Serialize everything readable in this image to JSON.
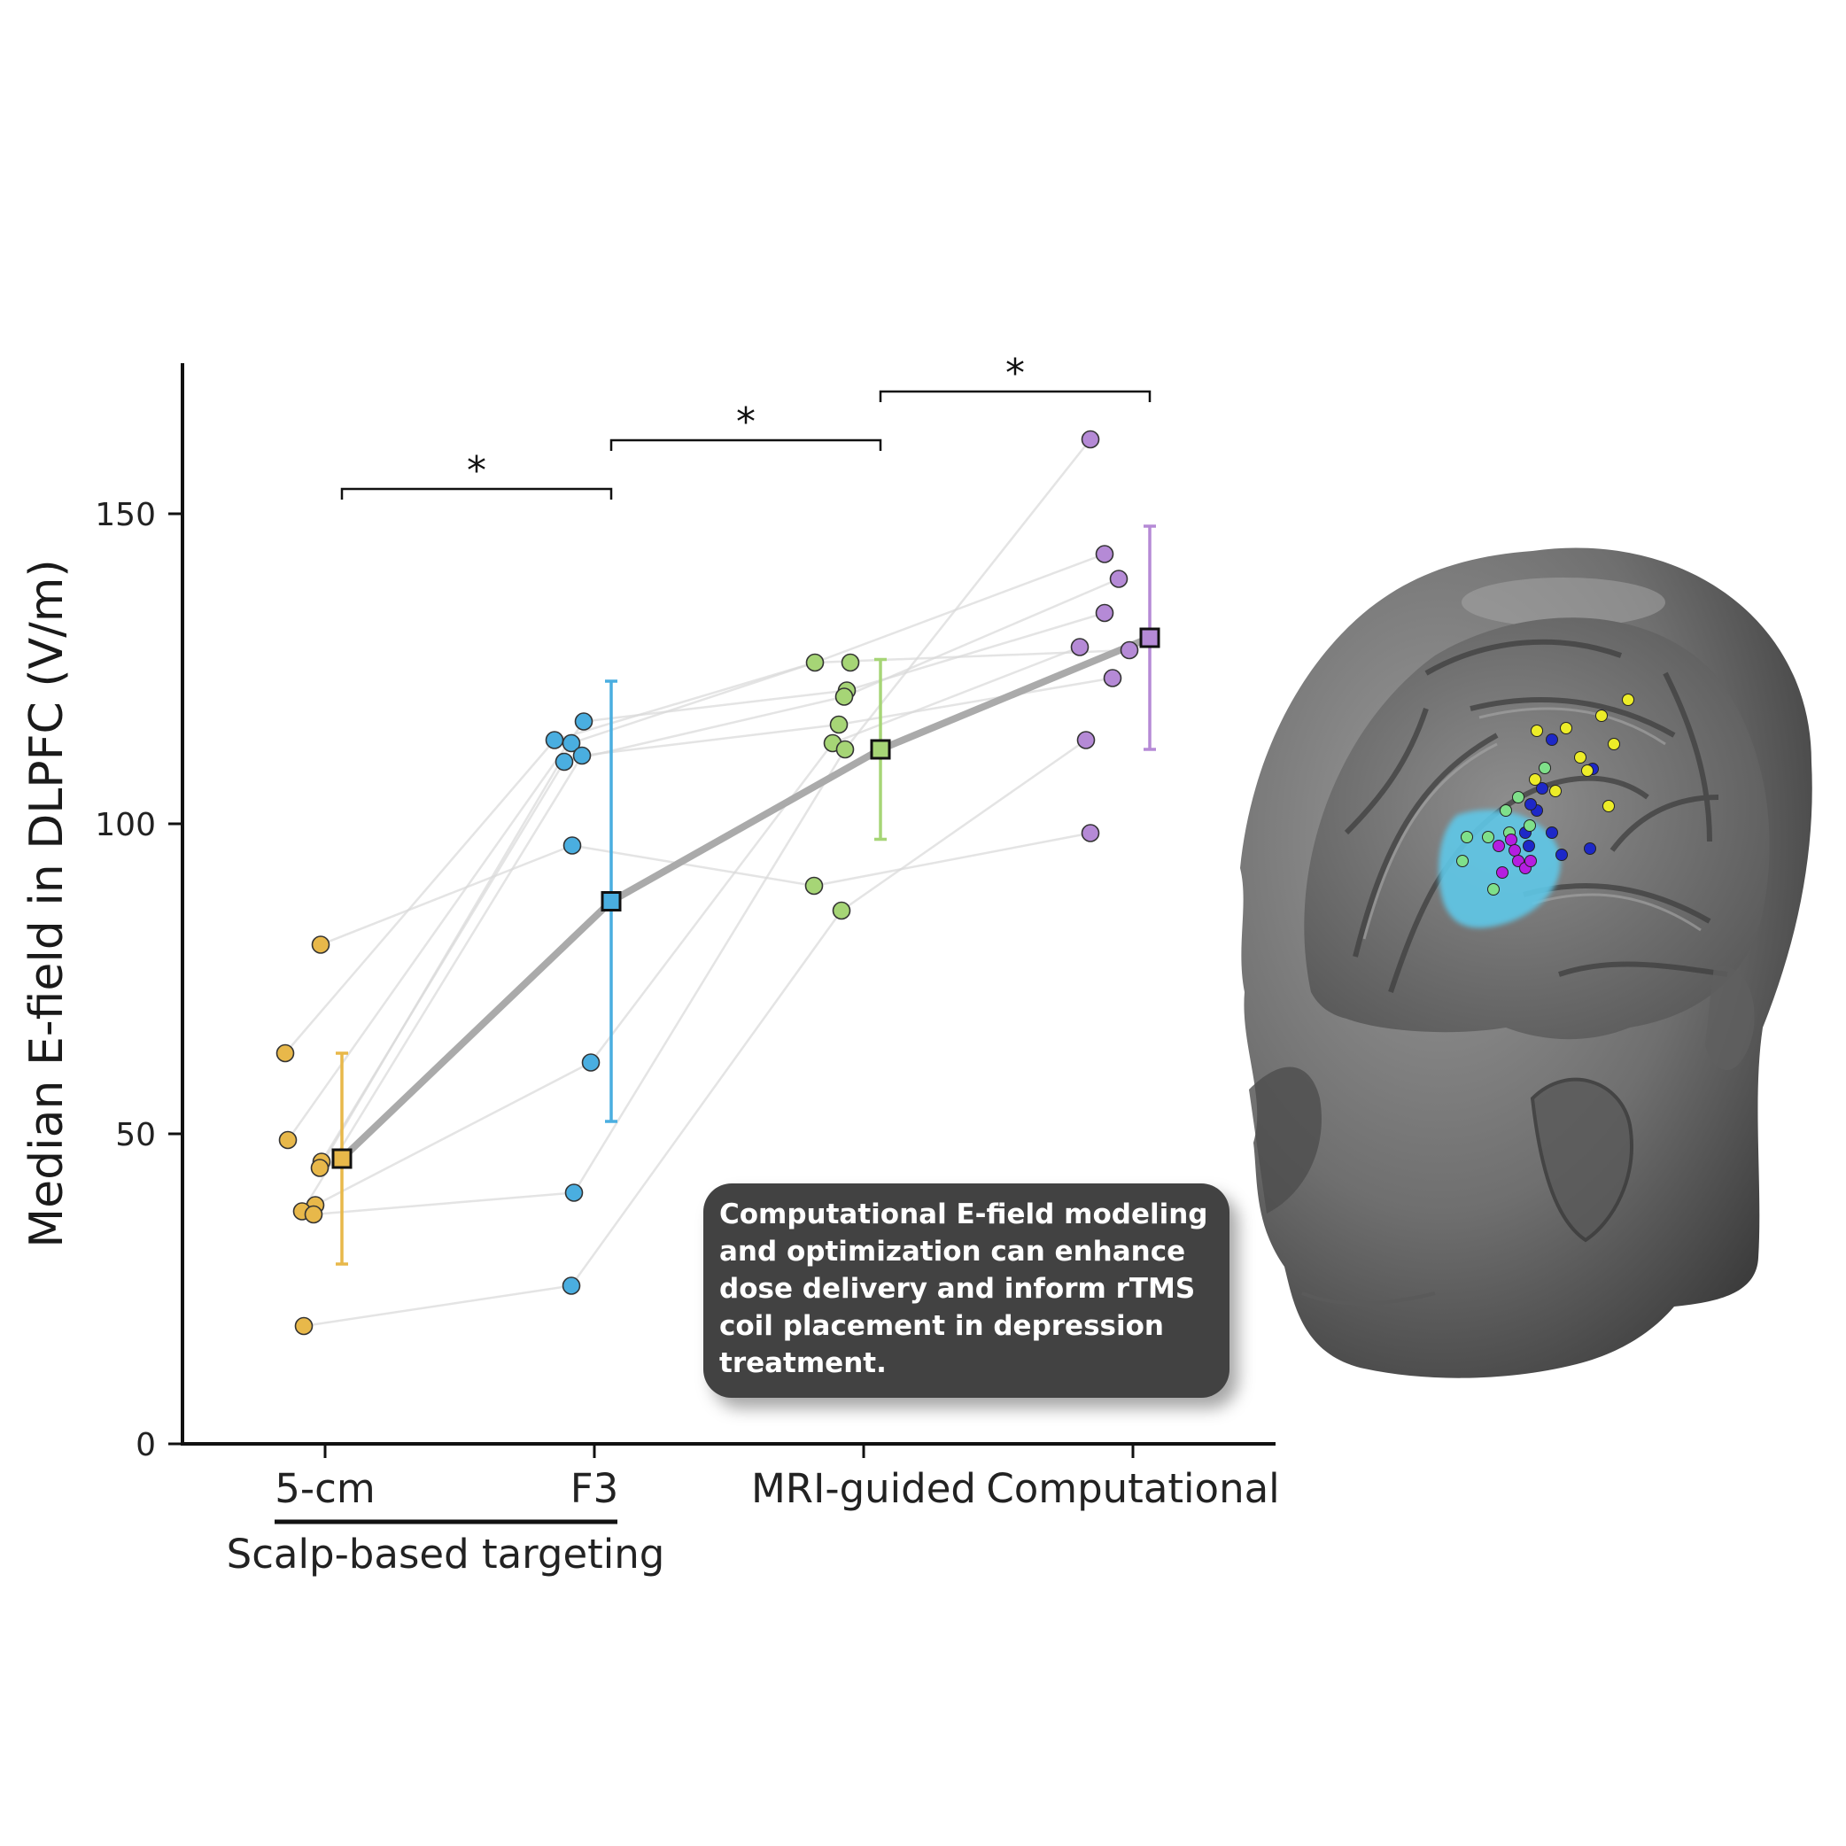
{
  "chart_data": {
    "type": "scatter",
    "categories": [
      "5-cm",
      "F3",
      "MRI-guided",
      "Computational"
    ],
    "group_label": "Scalp-based targeting",
    "ylabel": "Median E-field in DLPFC (V/m)",
    "ylim": [
      0,
      175
    ],
    "yticks": [
      0,
      50,
      100,
      150
    ],
    "significance_marks": [
      {
        "from": "5-cm",
        "to": "F3",
        "label": "*"
      },
      {
        "from": "F3",
        "to": "MRI-guided",
        "label": "*"
      },
      {
        "from": "MRI-guided",
        "to": "Computational",
        "label": "*"
      }
    ],
    "series": [
      {
        "category": "5-cm",
        "color": "#e8b84a",
        "mean": 46,
        "error": [
          29,
          63
        ],
        "points": [
          80.5,
          63,
          49,
          45.5,
          44.5,
          38.5,
          37.5,
          37,
          19
        ]
      },
      {
        "category": "F3",
        "color": "#4aaee0",
        "mean": 87.5,
        "error": [
          52,
          123
        ],
        "points": [
          116.5,
          113.5,
          113,
          111,
          110,
          96.5,
          61.5,
          40.5,
          25.5
        ]
      },
      {
        "category": "MRI-guided",
        "color": "#a6d576",
        "mean": 112,
        "error": [
          97.5,
          126.5
        ],
        "points": [
          126,
          126,
          121.5,
          120.5,
          116,
          113,
          112,
          90,
          86
        ]
      },
      {
        "category": "Computational",
        "color": "#b58ad6",
        "mean": 130,
        "error": [
          112,
          148
        ],
        "points": [
          162,
          143.5,
          139.5,
          134,
          128.5,
          128,
          123.5,
          113.5,
          98.5
        ]
      }
    ],
    "subject_lines": [
      [
        80.5,
        96.5,
        90,
        98.5
      ],
      [
        63,
        113.5,
        126,
        128
      ],
      [
        49,
        116.5,
        121.5,
        134
      ],
      [
        45.5,
        110,
        120.5,
        139.5
      ],
      [
        44.5,
        113,
        126,
        143.5
      ],
      [
        38.5,
        61.5,
        113,
        128.5
      ],
      [
        37.5,
        111,
        116,
        123.5
      ],
      [
        37,
        40.5,
        112,
        162
      ],
      [
        19,
        25.5,
        86,
        113.5
      ]
    ]
  },
  "callout": {
    "text": "Computational E-field modeling and optimization can enhance dose delivery and inform rTMS coil placement in depression treatment."
  },
  "brain_figure": {
    "markers": [
      {
        "color": "#1d28c8"
      },
      {
        "color": "#eded28"
      },
      {
        "color": "#7fe08a"
      },
      {
        "color": "#b51ee0"
      }
    ],
    "target_color": "#5ec8e8"
  }
}
